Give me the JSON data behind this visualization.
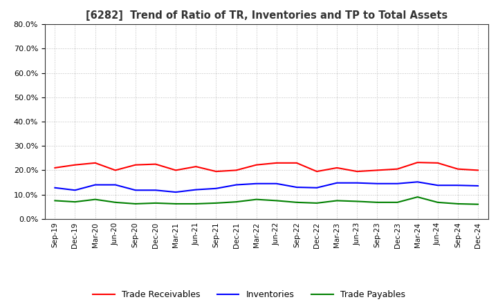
{
  "title": "[6282]  Trend of Ratio of TR, Inventories and TP to Total Assets",
  "x_labels": [
    "Sep-19",
    "Dec-19",
    "Mar-20",
    "Jun-20",
    "Sep-20",
    "Dec-20",
    "Mar-21",
    "Jun-21",
    "Sep-21",
    "Dec-21",
    "Mar-22",
    "Jun-22",
    "Sep-22",
    "Dec-22",
    "Mar-23",
    "Jun-23",
    "Sep-23",
    "Dec-23",
    "Mar-24",
    "Jun-24",
    "Sep-24",
    "Dec-24"
  ],
  "trade_receivables": [
    0.21,
    0.222,
    0.23,
    0.2,
    0.222,
    0.225,
    0.2,
    0.215,
    0.195,
    0.2,
    0.222,
    0.23,
    0.23,
    0.195,
    0.21,
    0.195,
    0.2,
    0.205,
    0.232,
    0.23,
    0.205,
    0.2
  ],
  "inventories": [
    0.128,
    0.118,
    0.14,
    0.14,
    0.118,
    0.118,
    0.11,
    0.12,
    0.125,
    0.14,
    0.145,
    0.145,
    0.13,
    0.128,
    0.148,
    0.148,
    0.145,
    0.145,
    0.152,
    0.138,
    0.138,
    0.136
  ],
  "trade_payables": [
    0.075,
    0.07,
    0.08,
    0.068,
    0.062,
    0.065,
    0.062,
    0.062,
    0.065,
    0.07,
    0.08,
    0.075,
    0.068,
    0.065,
    0.075,
    0.072,
    0.068,
    0.068,
    0.09,
    0.068,
    0.062,
    0.06
  ],
  "ylim": [
    0.0,
    0.8
  ],
  "yticks": [
    0.0,
    0.1,
    0.2,
    0.3,
    0.4,
    0.5,
    0.6,
    0.7,
    0.8
  ],
  "color_tr": "#FF0000",
  "color_inv": "#0000FF",
  "color_tp": "#008000",
  "background_color": "#FFFFFF",
  "grid_color": "#AAAAAA"
}
